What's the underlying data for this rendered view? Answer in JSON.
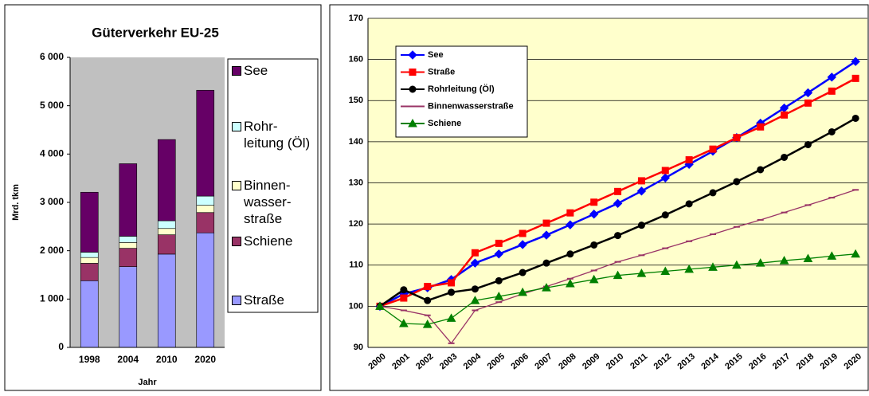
{
  "chart_data": [
    {
      "type": "stacked-bar",
      "title": "Güterverkehr EU-25",
      "y_label": "Mrd. tkm",
      "x_label": "Jahr",
      "categories": [
        "1998",
        "2004",
        "2010",
        "2020"
      ],
      "series": [
        {
          "name": "Straße",
          "color": "#9999ff",
          "values": [
            1380,
            1670,
            1930,
            2370
          ]
        },
        {
          "name": "Schiene",
          "color": "#993366",
          "values": [
            360,
            380,
            400,
            420
          ]
        },
        {
          "name": "Binnen-wasser-straße",
          "color": "#ffffcc",
          "values": [
            120,
            120,
            130,
            150
          ]
        },
        {
          "name": "Rohr-leitung (Öl)",
          "color": "#ccffff",
          "values": [
            110,
            130,
            160,
            190
          ]
        },
        {
          "name": "See",
          "color": "#660066",
          "values": [
            1240,
            1500,
            1680,
            2190
          ]
        }
      ],
      "ylim": [
        0,
        6000
      ],
      "yticks": [
        0,
        {
          "value": 1000,
          "label": "1 000"
        },
        {
          "value": 2000,
          "label": "2 000"
        },
        {
          "value": 3000,
          "label": "3 000"
        },
        {
          "value": 4000,
          "label": "4 000"
        },
        {
          "value": 5000,
          "label": "5 000"
        },
        {
          "value": 6000,
          "label": "6 000"
        }
      ],
      "grid": false,
      "legend": "right"
    },
    {
      "type": "line",
      "categories": [
        "2000",
        "2001",
        "2002",
        "2003",
        "2004",
        "2005",
        "2006",
        "2007",
        "2008",
        "2009",
        "2010",
        "2011",
        "2012",
        "2013",
        "2014",
        "2015",
        "2016",
        "2017",
        "2018",
        "2019",
        "2020"
      ],
      "series": [
        {
          "name": "See",
          "color": "#0000ff",
          "marker": "diamond",
          "values": [
            100,
            103,
            104.5,
            106.5,
            110.5,
            112.7,
            115,
            117.3,
            119.8,
            122.4,
            125,
            128,
            131.2,
            134.5,
            137.7,
            141,
            144.5,
            148.2,
            151.9,
            155.7,
            159.5
          ]
        },
        {
          "name": "Straße",
          "color": "#ff0000",
          "marker": "square",
          "values": [
            100,
            102,
            104.8,
            105.7,
            113,
            115.3,
            117.7,
            120.2,
            122.7,
            125.3,
            127.9,
            130.5,
            133,
            135.6,
            138.2,
            141,
            143.6,
            146.5,
            149.4,
            152.3,
            155.4
          ]
        },
        {
          "name": "Rohrleitung (Öl)",
          "color": "#000000",
          "marker": "circle",
          "values": [
            100,
            104,
            101.4,
            103.4,
            104.2,
            106.2,
            108.2,
            110.5,
            112.7,
            114.9,
            117.2,
            119.7,
            122.2,
            124.9,
            127.6,
            130.3,
            133.2,
            136.2,
            139.3,
            142.4,
            145.7
          ]
        },
        {
          "name": "Binnenwasserstraße",
          "color": "#993366",
          "marker": "dash",
          "values": [
            100,
            99,
            97.8,
            91,
            99,
            101,
            103,
            104.8,
            106.7,
            108.7,
            110.8,
            112.4,
            114.1,
            115.8,
            117.5,
            119.3,
            121,
            122.8,
            124.6,
            126.4,
            128.3
          ]
        },
        {
          "name": "Schiene",
          "color": "#008000",
          "marker": "triangle",
          "values": [
            100,
            95.8,
            95.6,
            97.1,
            101.4,
            102.4,
            103.4,
            104.5,
            105.5,
            106.5,
            107.5,
            108,
            108.5,
            109,
            109.5,
            110,
            110.5,
            111.1,
            111.6,
            112.2,
            112.7
          ]
        }
      ],
      "ylim": [
        90,
        170
      ],
      "yticks": [
        90,
        100,
        110,
        120,
        130,
        140,
        150,
        160,
        170
      ],
      "grid": true,
      "legend": "upper left"
    }
  ]
}
